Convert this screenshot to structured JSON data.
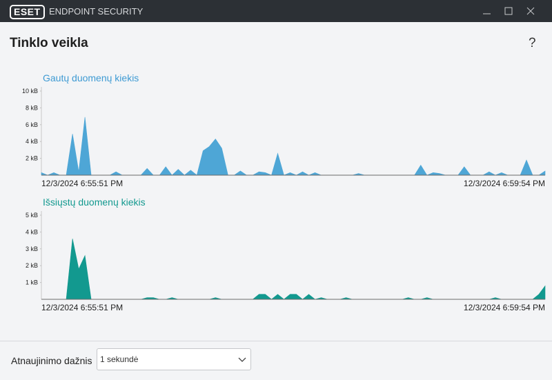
{
  "titlebar": {
    "logo": "ESET",
    "product": "ENDPOINT SECURITY"
  },
  "header": {
    "title": "Tinklo veikla",
    "help": "?"
  },
  "chart_data": [
    {
      "type": "area",
      "title": "Gautų duomenų kiekis",
      "color": "#4ea6d6",
      "title_color": "#3d9ad3",
      "ylim": [
        0,
        10
      ],
      "yticks": [
        {
          "value": 2,
          "label": "2 kB"
        },
        {
          "value": 4,
          "label": "4 kB"
        },
        {
          "value": 6,
          "label": "6 kB"
        },
        {
          "value": 8,
          "label": "8 kB"
        },
        {
          "value": 10,
          "label": "10 kB"
        }
      ],
      "categories": [
        "12/3/2024 6:55:51 PM",
        null,
        null,
        null,
        null,
        null,
        null,
        null,
        null,
        null,
        null,
        null,
        null,
        null,
        null,
        null,
        null,
        null,
        null,
        null,
        null,
        null,
        null,
        null,
        null,
        null,
        null,
        null,
        null,
        null,
        null,
        null,
        null,
        null,
        null,
        null,
        null,
        null,
        null,
        null,
        null,
        null,
        null,
        null,
        null,
        null,
        null,
        null,
        null,
        null,
        null,
        null,
        null,
        null,
        null,
        null,
        null,
        null,
        null,
        null,
        null,
        null,
        null,
        null,
        null,
        null,
        null,
        null,
        null,
        null,
        null,
        null,
        null,
        null,
        null,
        null,
        null,
        null,
        null,
        null,
        null,
        "12/3/2024 6:59:54 PM"
      ],
      "values": [
        0.3,
        0,
        0.3,
        0,
        0,
        4.9,
        0.4,
        6.9,
        0,
        0,
        0,
        0,
        0.4,
        0,
        0,
        0,
        0,
        0.8,
        0,
        0,
        1,
        0,
        0.7,
        0,
        0.6,
        0,
        2.9,
        3.4,
        4.3,
        3.2,
        0,
        0,
        0.5,
        0,
        0,
        0.4,
        0.3,
        0,
        2.6,
        0,
        0.3,
        0,
        0.4,
        0,
        0.3,
        0,
        0,
        0,
        0,
        0,
        0,
        0.2,
        0,
        0,
        0,
        0,
        0,
        0,
        0,
        0,
        0,
        1.2,
        0,
        0.3,
        0.2,
        0,
        0,
        0,
        1,
        0,
        0,
        0,
        0.4,
        0,
        0.3,
        0,
        0,
        0,
        1.8,
        0,
        0,
        0.5
      ]
    },
    {
      "type": "area",
      "title": "Išsiųstų duomenų kiekis",
      "color": "#12998f",
      "title_color": "#12998f",
      "ylim": [
        0,
        5
      ],
      "yticks": [
        {
          "value": 1,
          "label": "1 kB"
        },
        {
          "value": 2,
          "label": "2 kB"
        },
        {
          "value": 3,
          "label": "3 kB"
        },
        {
          "value": 4,
          "label": "4 kB"
        },
        {
          "value": 5,
          "label": "5 kB"
        }
      ],
      "categories": [
        "12/3/2024 6:55:51 PM",
        null,
        null,
        null,
        null,
        null,
        null,
        null,
        null,
        null,
        null,
        null,
        null,
        null,
        null,
        null,
        null,
        null,
        null,
        null,
        null,
        null,
        null,
        null,
        null,
        null,
        null,
        null,
        null,
        null,
        null,
        null,
        null,
        null,
        null,
        null,
        null,
        null,
        null,
        null,
        null,
        null,
        null,
        null,
        null,
        null,
        null,
        null,
        null,
        null,
        null,
        null,
        null,
        null,
        null,
        null,
        null,
        null,
        null,
        null,
        null,
        null,
        null,
        null,
        null,
        null,
        null,
        null,
        null,
        null,
        null,
        null,
        null,
        null,
        null,
        null,
        null,
        null,
        null,
        null,
        null,
        "12/3/2024 6:59:54 PM"
      ],
      "values": [
        0,
        0,
        0,
        0,
        0,
        3.6,
        1.8,
        2.6,
        0,
        0,
        0,
        0,
        0,
        0,
        0,
        0,
        0,
        0.1,
        0.1,
        0,
        0,
        0.1,
        0,
        0,
        0,
        0,
        0,
        0,
        0.1,
        0,
        0,
        0,
        0,
        0,
        0,
        0.3,
        0.3,
        0,
        0.3,
        0,
        0.3,
        0.3,
        0,
        0.3,
        0,
        0.1,
        0,
        0,
        0,
        0.1,
        0,
        0,
        0,
        0,
        0,
        0,
        0,
        0,
        0,
        0.1,
        0,
        0,
        0.1,
        0,
        0,
        0,
        0,
        0,
        0,
        0,
        0,
        0,
        0,
        0.1,
        0,
        0,
        0,
        0,
        0,
        0,
        0.3,
        0.8
      ]
    }
  ],
  "footer": {
    "label": "Atnaujinimo dažnis",
    "select": "1 sekundė"
  }
}
